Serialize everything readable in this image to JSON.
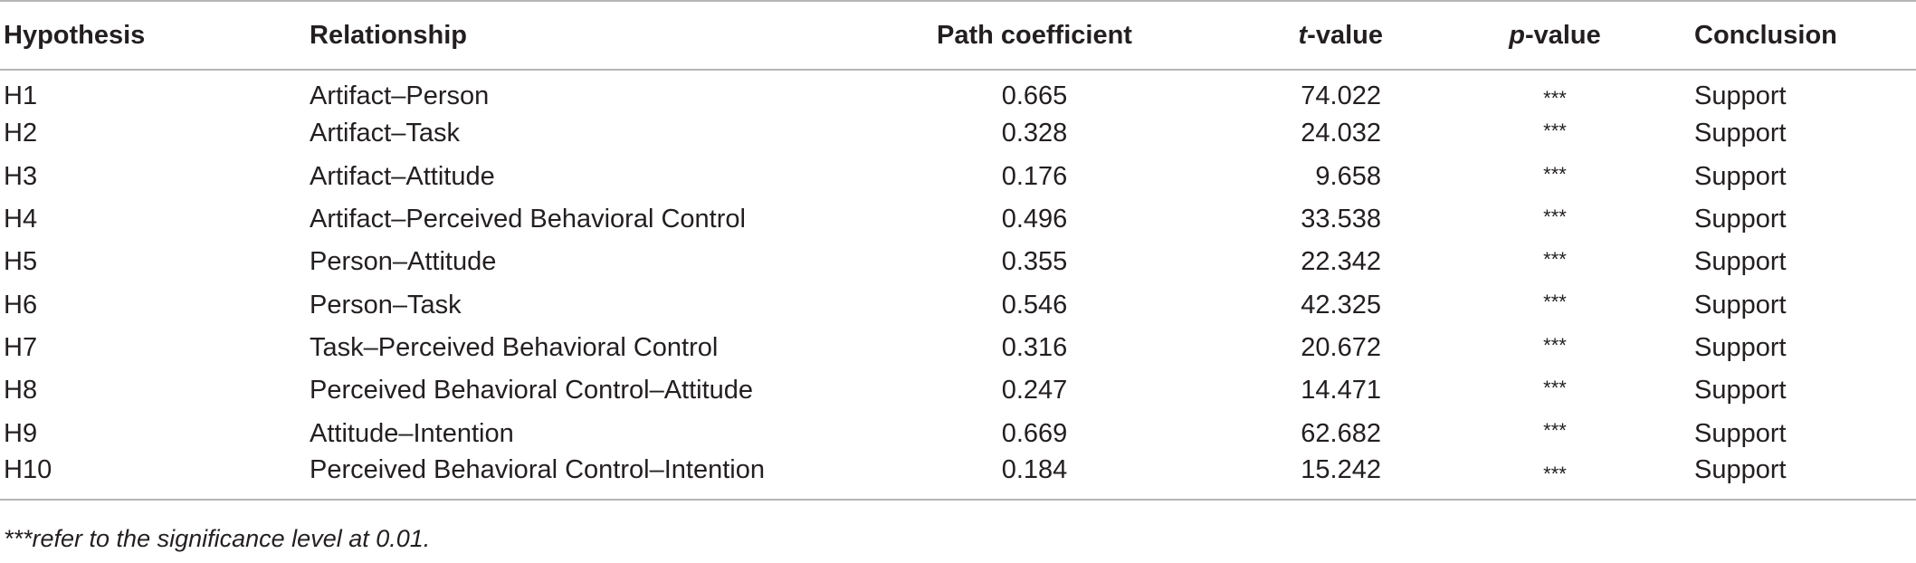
{
  "table": {
    "headers": {
      "hypothesis": "Hypothesis",
      "relationship": "Relationship",
      "path_coefficient": "Path coefficient",
      "t_value_prefix": "t",
      "t_value_suffix": "-value",
      "p_value_prefix": "p",
      "p_value_suffix": "-value",
      "conclusion": "Conclusion"
    },
    "rows": [
      {
        "hypothesis": "H1",
        "relationship": "Artifact–Person",
        "path_coefficient": "0.665",
        "t_value": "74.022",
        "p_value": "***",
        "conclusion": "Support"
      },
      {
        "hypothesis": "H2",
        "relationship": "Artifact–Task",
        "path_coefficient": "0.328",
        "t_value": "24.032",
        "p_value": "***",
        "conclusion": "Support"
      },
      {
        "hypothesis": "H3",
        "relationship": "Artifact–Attitude",
        "path_coefficient": "0.176",
        "t_value": "9.658",
        "p_value": "***",
        "conclusion": "Support"
      },
      {
        "hypothesis": "H4",
        "relationship": "Artifact–Perceived Behavioral Control",
        "path_coefficient": "0.496",
        "t_value": "33.538",
        "p_value": "***",
        "conclusion": "Support"
      },
      {
        "hypothesis": "H5",
        "relationship": "Person–Attitude",
        "path_coefficient": "0.355",
        "t_value": "22.342",
        "p_value": "***",
        "conclusion": "Support"
      },
      {
        "hypothesis": "H6",
        "relationship": "Person–Task",
        "path_coefficient": "0.546",
        "t_value": "42.325",
        "p_value": "***",
        "conclusion": "Support"
      },
      {
        "hypothesis": "H7",
        "relationship": "Task–Perceived Behavioral Control",
        "path_coefficient": "0.316",
        "t_value": "20.672",
        "p_value": "***",
        "conclusion": "Support"
      },
      {
        "hypothesis": "H8",
        "relationship": "Perceived Behavioral Control–Attitude",
        "path_coefficient": "0.247",
        "t_value": "14.471",
        "p_value": "***",
        "conclusion": "Support"
      },
      {
        "hypothesis": "H9",
        "relationship": "Attitude–Intention",
        "path_coefficient": "0.669",
        "t_value": "62.682",
        "p_value": "***",
        "conclusion": "Support"
      },
      {
        "hypothesis": "H10",
        "relationship": "Perceived Behavioral Control–Intention",
        "path_coefficient": "0.184",
        "t_value": "15.242",
        "p_value": "***",
        "conclusion": "Support"
      }
    ],
    "footnote": "***refer to the significance level at 0.01."
  }
}
